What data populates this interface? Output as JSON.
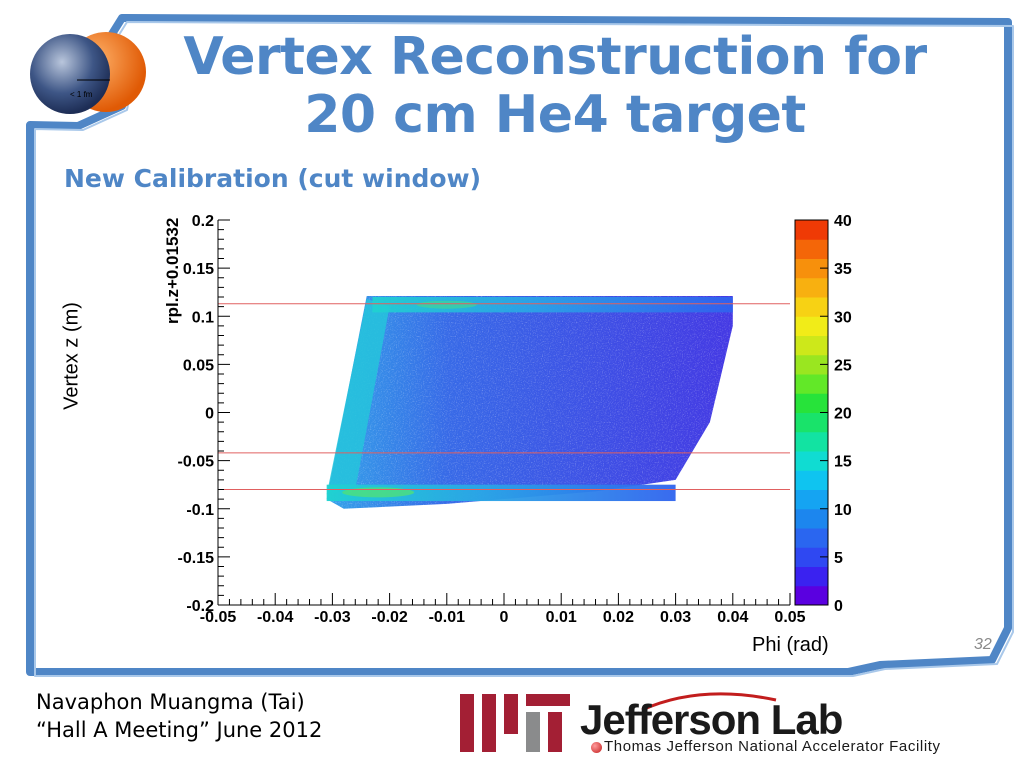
{
  "title": "Vertex Reconstruction for 20 cm He4 target",
  "subtitle": "New Calibration (cut window)",
  "logo_label": "< 1 fm",
  "page_number": "32",
  "footer": {
    "author": "Navaphon Muangma (Tai)",
    "event": "“Hall A Meeting” June 2012"
  },
  "jlab": {
    "name": "Jefferson Lab",
    "facility": "Thomas Jefferson National Accelerator Facility"
  },
  "colors": {
    "frame": "#4f86c6",
    "title": "#4f86c6",
    "cut_line": "#e06060"
  },
  "chart_data": {
    "type": "heatmap",
    "xlabel": "Phi (rad)",
    "ylabel": "Vertex z (m)",
    "inner_ylabel": "rpl.z+0.01532",
    "xlim": [
      -0.05,
      0.05
    ],
    "ylim": [
      -0.2,
      0.2
    ],
    "x_ticks": [
      "-0.05",
      "-0.04",
      "-0.03",
      "-0.02",
      "-0.01",
      "0",
      "0.01",
      "0.02",
      "0.03",
      "0.04",
      "0.05"
    ],
    "y_ticks": [
      "-0.2",
      "-0.15",
      "-0.1",
      "-0.05",
      "0",
      "0.05",
      "0.1",
      "0.15",
      "0.2"
    ],
    "colorbar": {
      "range": [
        0,
        40
      ],
      "ticks": [
        "0",
        "5",
        "10",
        "15",
        "20",
        "25",
        "30",
        "35",
        "40"
      ]
    },
    "cut_lines_z": [
      0.113,
      -0.042,
      -0.08
    ]
  }
}
